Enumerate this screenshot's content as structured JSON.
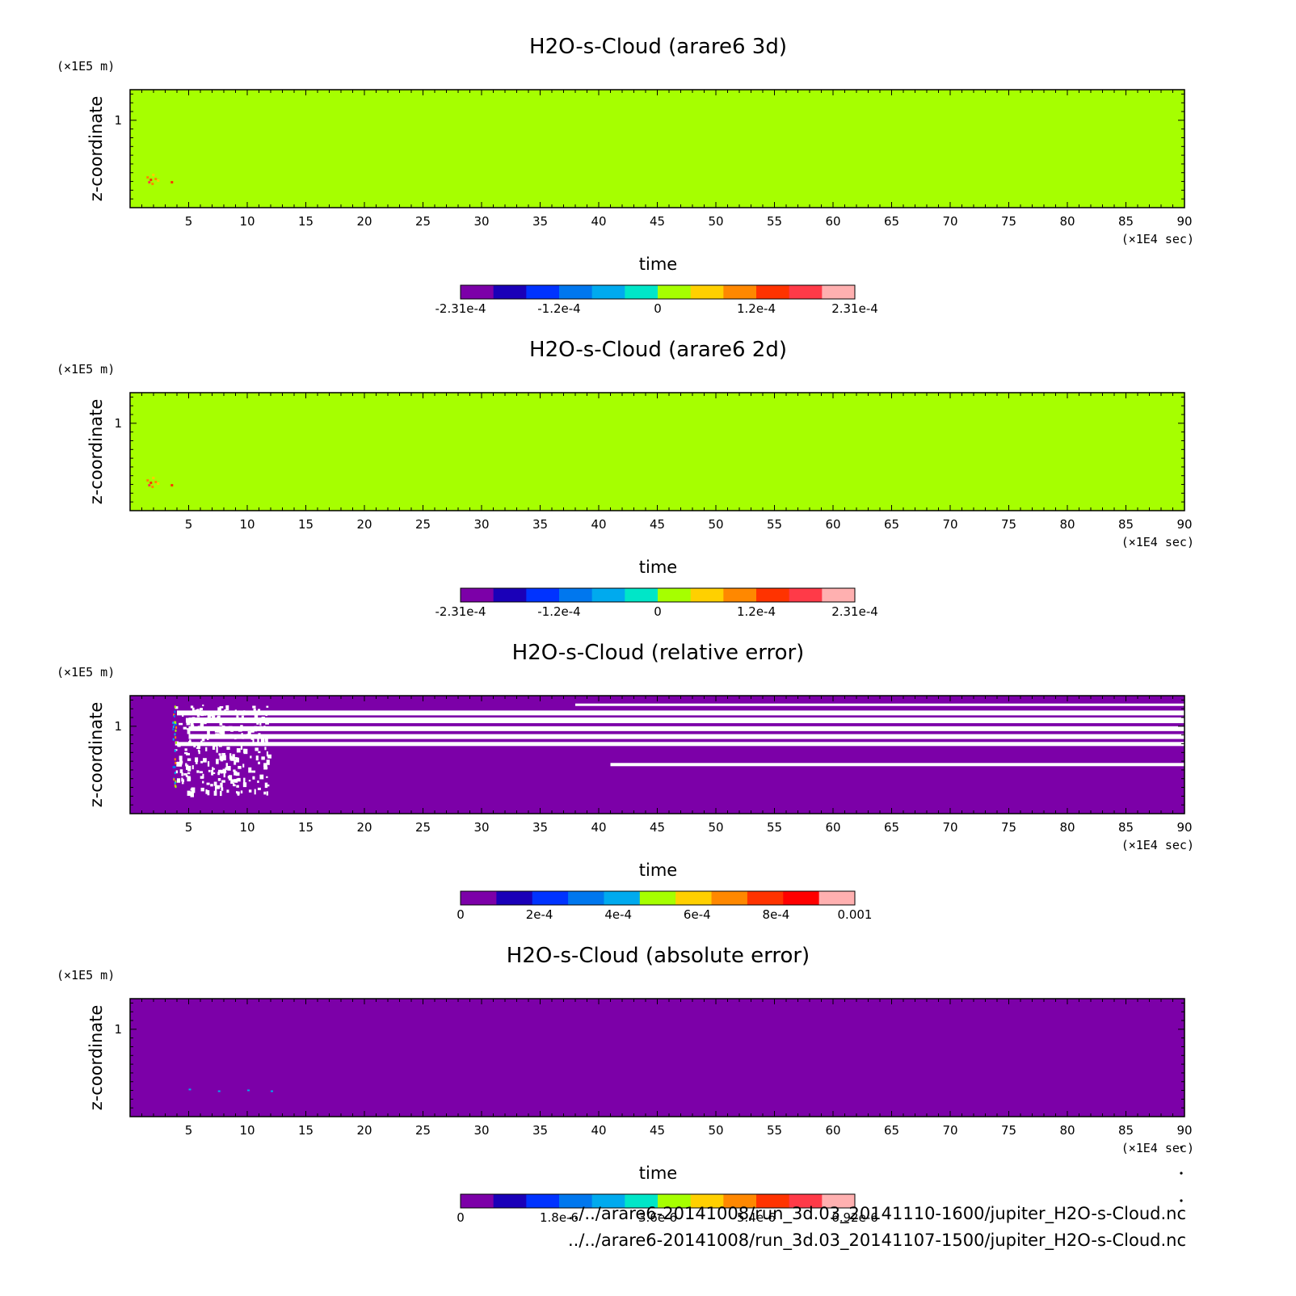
{
  "chart_data": [
    {
      "type": "heatmap",
      "title": "H2O-s-Cloud (arare6 3d)",
      "xlabel": "time",
      "ylabel": "z-coordinate",
      "x_unit": "(×1E4 sec)",
      "y_unit": "(×1E5 m)",
      "xlim": [
        0,
        90
      ],
      "ylim": [
        0,
        1.35
      ],
      "x_ticks": [
        "5",
        "10",
        "15",
        "20",
        "25",
        "30",
        "35",
        "40",
        "45",
        "50",
        "55",
        "60",
        "65",
        "70",
        "75",
        "80",
        "85",
        "90"
      ],
      "y_ticks": [
        "1"
      ],
      "background_level": 0,
      "colorbar": {
        "colors": [
          "#7c00a8",
          "#1a00b8",
          "#0033ff",
          "#0077ee",
          "#00aaee",
          "#00e6c8",
          "#a6ff00",
          "#ffd000",
          "#ff8800",
          "#ff3300",
          "#ff3a48",
          "#ffb0b0"
        ],
        "ticks": [
          "-2.31e-4",
          "-1.2e-4",
          "0",
          "1.2e-4",
          "2.31e-4"
        ]
      }
    },
    {
      "type": "heatmap",
      "title": "H2O-s-Cloud (arare6 2d)",
      "xlabel": "time",
      "ylabel": "z-coordinate",
      "x_unit": "(×1E4 sec)",
      "y_unit": "(×1E5 m)",
      "xlim": [
        0,
        90
      ],
      "ylim": [
        0,
        1.35
      ],
      "x_ticks": [
        "5",
        "10",
        "15",
        "20",
        "25",
        "30",
        "35",
        "40",
        "45",
        "50",
        "55",
        "60",
        "65",
        "70",
        "75",
        "80",
        "85",
        "90"
      ],
      "y_ticks": [
        "1"
      ],
      "background_level": 0,
      "colorbar": {
        "colors": [
          "#7c00a8",
          "#1a00b8",
          "#0033ff",
          "#0077ee",
          "#00aaee",
          "#00e6c8",
          "#a6ff00",
          "#ffd000",
          "#ff8800",
          "#ff3300",
          "#ff3a48",
          "#ffb0b0"
        ],
        "ticks": [
          "-2.31e-4",
          "-1.2e-4",
          "0",
          "1.2e-4",
          "2.31e-4"
        ]
      }
    },
    {
      "type": "heatmap",
      "title": "H2O-s-Cloud (relative error)",
      "xlabel": "time",
      "ylabel": "z-coordinate",
      "x_unit": "(×1E4 sec)",
      "y_unit": "(×1E5 m)",
      "xlim": [
        0,
        90
      ],
      "ylim": [
        0,
        1.35
      ],
      "x_ticks": [
        "5",
        "10",
        "15",
        "20",
        "25",
        "30",
        "35",
        "40",
        "45",
        "50",
        "55",
        "60",
        "65",
        "70",
        "75",
        "80",
        "85",
        "90"
      ],
      "y_ticks": [
        "1"
      ],
      "background_level": 0,
      "colorbar": {
        "colors": [
          "#7c00a8",
          "#1a00b8",
          "#0033ff",
          "#0077ee",
          "#00aaee",
          "#a6ff00",
          "#ffd000",
          "#ff8800",
          "#ff3300",
          "#ff0000",
          "#ffb0b0"
        ],
        "ticks": [
          "0",
          "2e-4",
          "4e-4",
          "6e-4",
          "8e-4",
          "0.001"
        ]
      }
    },
    {
      "type": "heatmap",
      "title": "H2O-s-Cloud (absolute error)",
      "xlabel": "time",
      "ylabel": "z-coordinate",
      "x_unit": "(×1E4 sec)",
      "y_unit": "(×1E5 m)",
      "xlim": [
        0,
        90
      ],
      "ylim": [
        0,
        1.35
      ],
      "x_ticks": [
        "5",
        "10",
        "15",
        "20",
        "25",
        "30",
        "35",
        "40",
        "45",
        "50",
        "55",
        "60",
        "65",
        "70",
        "75",
        "80",
        "85",
        "90"
      ],
      "y_ticks": [
        "1"
      ],
      "background_level": 0,
      "colorbar": {
        "colors": [
          "#7c00a8",
          "#1a00b8",
          "#0033ff",
          "#0077ee",
          "#00aaee",
          "#00e6c8",
          "#a6ff00",
          "#ffd000",
          "#ff8800",
          "#ff3300",
          "#ff3a48",
          "#ffb0b0"
        ],
        "ticks": [
          "0",
          "1.8e-6",
          "3.6e-6",
          "5.4e-6",
          "6.92e-6"
        ]
      }
    }
  ],
  "footer": {
    "file_1": "../../arare6-20141008/run_3d.03_20141110-1600/jupiter_H2O-s-Cloud.nc",
    "file_2": "../../arare6-20141008/run_3d.03_20141107-1500/jupiter_H2O-s-Cloud.nc"
  }
}
